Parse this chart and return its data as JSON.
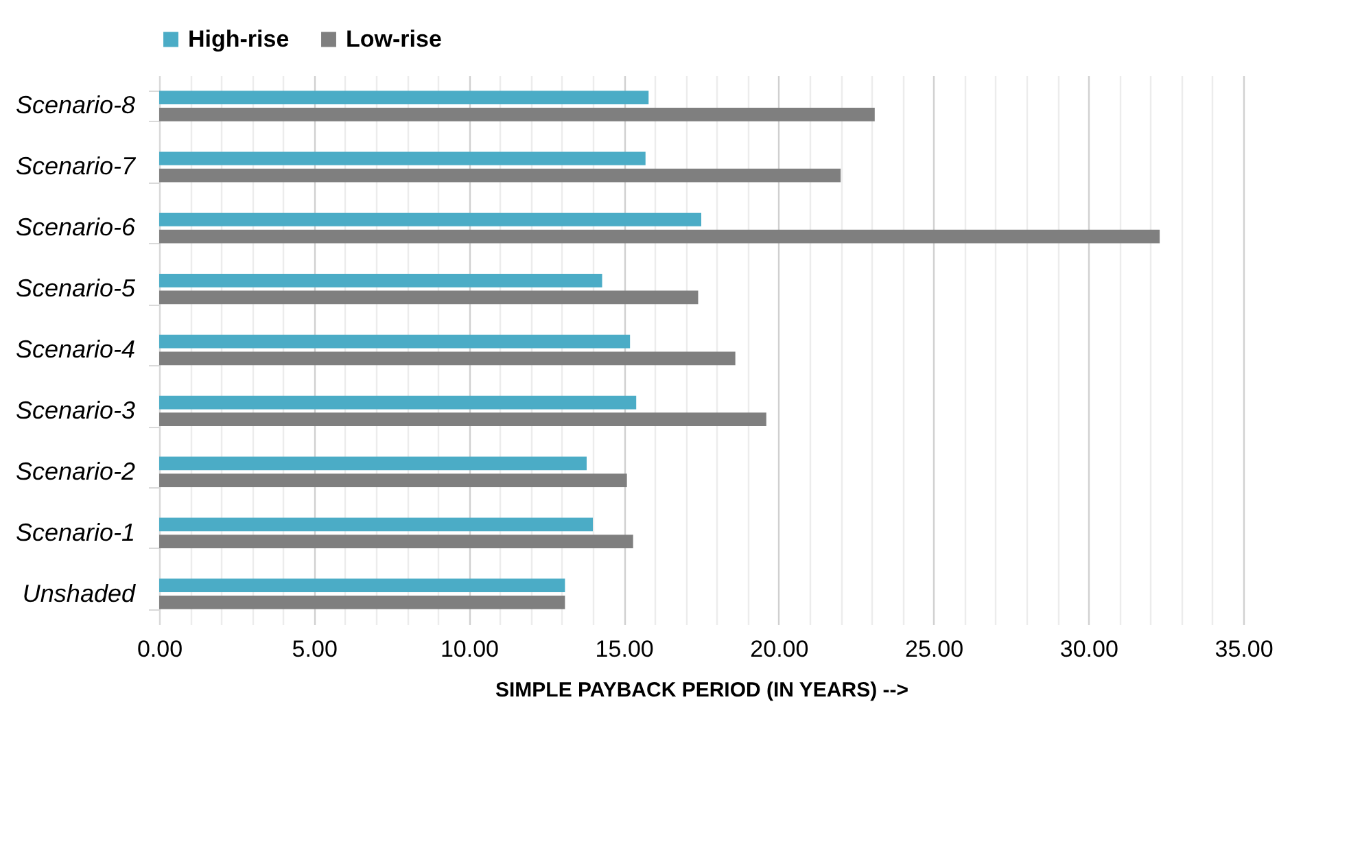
{
  "chart_data": {
    "type": "bar",
    "orientation": "horizontal",
    "xlabel": "SIMPLE PAYBACK PERIOD (IN YEARS) -->",
    "categories": [
      "Scenario-8",
      "Scenario-7",
      "Scenario-6",
      "Scenario-5",
      "Scenario-4",
      "Scenario-3",
      "Scenario-2",
      "Scenario-1",
      "Unshaded"
    ],
    "series": [
      {
        "name": "High-rise",
        "color": "#4bacc6",
        "values": [
          15.8,
          15.7,
          17.5,
          14.3,
          15.2,
          15.4,
          13.8,
          14.0,
          13.1
        ]
      },
      {
        "name": "Low-rise",
        "color": "#7f7f7f",
        "values": [
          23.1,
          22.0,
          32.3,
          17.4,
          18.6,
          19.6,
          15.1,
          15.3,
          13.1
        ]
      }
    ],
    "xlim": [
      0,
      35
    ],
    "xticks": [
      {
        "value": 0,
        "label": "0.00"
      },
      {
        "value": 1,
        "label": null
      },
      {
        "value": 2,
        "label": null
      },
      {
        "value": 3,
        "label": null
      },
      {
        "value": 4,
        "label": null
      },
      {
        "value": 5,
        "label": "5.00"
      },
      {
        "value": 6,
        "label": null
      },
      {
        "value": 7,
        "label": null
      },
      {
        "value": 8,
        "label": null
      },
      {
        "value": 9,
        "label": null
      },
      {
        "value": 10,
        "label": "10.00"
      },
      {
        "value": 11,
        "label": null
      },
      {
        "value": 12,
        "label": null
      },
      {
        "value": 13,
        "label": null
      },
      {
        "value": 14,
        "label": null
      },
      {
        "value": 15,
        "label": "15.00"
      },
      {
        "value": 16,
        "label": null
      },
      {
        "value": 17,
        "label": null
      },
      {
        "value": 18,
        "label": null
      },
      {
        "value": 19,
        "label": null
      },
      {
        "value": 20,
        "label": "20.00"
      },
      {
        "value": 21,
        "label": null
      },
      {
        "value": 22,
        "label": null
      },
      {
        "value": 23,
        "label": null
      },
      {
        "value": 24,
        "label": null
      },
      {
        "value": 25,
        "label": "25.00"
      },
      {
        "value": 26,
        "label": null
      },
      {
        "value": 27,
        "label": null
      },
      {
        "value": 28,
        "label": null
      },
      {
        "value": 29,
        "label": null
      },
      {
        "value": 30,
        "label": "30.00"
      },
      {
        "value": 31,
        "label": null
      },
      {
        "value": 32,
        "label": null
      },
      {
        "value": 33,
        "label": null
      },
      {
        "value": 34,
        "label": null
      },
      {
        "value": 35,
        "label": "35.00"
      }
    ],
    "grid": "x",
    "legend": "top"
  }
}
